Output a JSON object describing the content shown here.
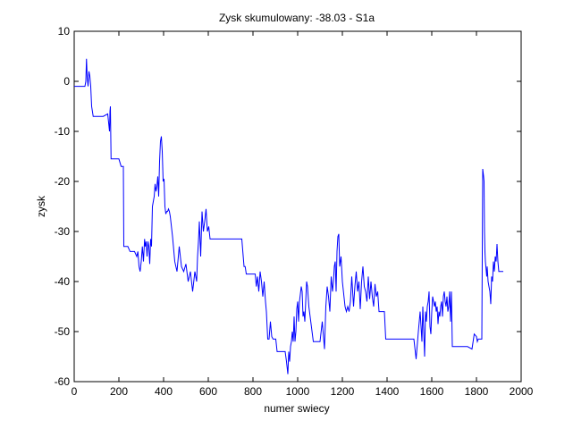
{
  "chart_data": {
    "type": "line",
    "title": "Zysk skumulowany: -38.03 - S1a",
    "xlabel": "numer swiecy",
    "ylabel": "zysk",
    "xlim": [
      0,
      2000
    ],
    "ylim": [
      -60,
      10
    ],
    "xticks": [
      0,
      200,
      400,
      600,
      800,
      1000,
      1200,
      1400,
      1600,
      1800,
      2000
    ],
    "yticks": [
      -60,
      -50,
      -40,
      -30,
      -20,
      -10,
      0,
      10
    ],
    "grid": false,
    "line_color": "#0000ff",
    "series": [
      {
        "x": [
          0,
          48,
          52,
          55,
          58,
          62,
          66,
          70,
          74,
          78,
          85,
          95,
          110,
          130,
          150,
          158,
          160,
          162,
          165,
          170,
          175,
          180,
          190,
          200,
          210,
          220,
          222,
          225,
          230,
          240,
          250,
          260,
          270,
          280,
          285,
          290,
          295,
          300,
          305,
          310,
          315,
          318,
          322,
          326,
          330,
          334,
          338,
          342,
          346,
          350,
          354,
          358,
          362,
          366,
          370,
          374,
          378,
          382,
          386,
          390,
          394,
          398,
          402,
          406,
          410,
          414,
          418,
          422,
          426,
          430,
          440,
          450,
          460,
          470,
          480,
          490,
          500,
          510,
          520,
          530,
          540,
          548,
          552,
          556,
          560,
          566,
          572,
          578,
          584,
          590,
          596,
          602,
          608,
          614,
          620,
          630,
          640,
          650,
          660,
          670,
          680,
          690,
          700,
          710,
          720,
          730,
          740,
          750,
          760,
          765,
          770,
          780,
          790,
          800,
          810,
          815,
          820,
          826,
          832,
          838,
          844,
          850,
          856,
          860,
          866,
          872,
          878,
          884,
          890,
          896,
          902,
          908,
          914,
          920,
          926,
          932,
          938,
          944,
          950,
          956,
          960,
          964,
          968,
          972,
          976,
          980,
          984,
          988,
          992,
          996,
          1000,
          1004,
          1008,
          1012,
          1016,
          1020,
          1024,
          1028,
          1032,
          1036,
          1040,
          1044,
          1050,
          1060,
          1070,
          1080,
          1090,
          1100,
          1110,
          1120,
          1126,
          1132,
          1138,
          1144,
          1150,
          1156,
          1160,
          1164,
          1168,
          1172,
          1176,
          1180,
          1184,
          1188,
          1194,
          1200,
          1206,
          1212,
          1218,
          1224,
          1230,
          1236,
          1242,
          1250,
          1256,
          1262,
          1268,
          1274,
          1280,
          1286,
          1292,
          1298,
          1304,
          1310,
          1316,
          1322,
          1328,
          1334,
          1340,
          1346,
          1352,
          1358,
          1364,
          1370,
          1376,
          1382,
          1388,
          1394,
          1400,
          1410,
          1420,
          1430,
          1440,
          1450,
          1460,
          1470,
          1480,
          1490,
          1500,
          1510,
          1520,
          1530,
          1540,
          1548,
          1552,
          1556,
          1560,
          1564,
          1568,
          1572,
          1576,
          1580,
          1584,
          1588,
          1592,
          1596,
          1600,
          1604,
          1608,
          1612,
          1616,
          1620,
          1624,
          1628,
          1632,
          1636,
          1640,
          1644,
          1648,
          1652,
          1656,
          1660,
          1664,
          1668,
          1672,
          1676,
          1680,
          1684,
          1688,
          1692,
          1696,
          1700,
          1704,
          1710,
          1720,
          1740,
          1760,
          1780,
          1790,
          1800,
          1804,
          1808,
          1812,
          1818,
          1824,
          1828,
          1832,
          1834,
          1836,
          1838,
          1840,
          1842,
          1844,
          1846,
          1848,
          1852,
          1856,
          1860,
          1864,
          1868,
          1872,
          1876,
          1880,
          1884,
          1888,
          1892,
          1896,
          1900,
          1910,
          1920
        ],
        "y": [
          -1,
          -1,
          0,
          4.5,
          1,
          -1,
          2,
          1,
          -1,
          -5,
          -7,
          -7,
          -7,
          -7,
          -6.5,
          -10,
          -6,
          -5,
          -15.5,
          -15.5,
          -15.5,
          -15.5,
          -15.5,
          -15.5,
          -17,
          -17,
          -33,
          -33,
          -33,
          -33,
          -34,
          -34,
          -34,
          -35,
          -34,
          -37,
          -38,
          -36,
          -33,
          -36,
          -31.5,
          -33,
          -32,
          -35,
          -32,
          -33,
          -36.5,
          -31.5,
          -33,
          -25,
          -24,
          -23,
          -20.5,
          -22,
          -21,
          -19,
          -23,
          -16,
          -12,
          -11,
          -14,
          -20,
          -19.5,
          -25,
          -26.5,
          -26,
          -26,
          -25.5,
          -26,
          -27,
          -31,
          -36,
          -38,
          -33,
          -37,
          -38,
          -36.5,
          -40,
          -38,
          -42,
          -38,
          -40,
          -35,
          -32,
          -28,
          -35,
          -26,
          -30,
          -28,
          -25.5,
          -30,
          -29,
          -31.5,
          -31.5,
          -31.5,
          -31.5,
          -31.5,
          -31.5,
          -31.5,
          -31.5,
          -31.5,
          -31.5,
          -31.5,
          -31.5,
          -31.5,
          -31.5,
          -31.5,
          -31.5,
          -37,
          -37,
          -38.5,
          -38.5,
          -38.5,
          -38.5,
          -38.5,
          -41,
          -39,
          -42,
          -38,
          -40,
          -43,
          -40,
          -44,
          -46,
          -51.5,
          -51.5,
          -48,
          -51,
          -51.5,
          -51.5,
          -51.5,
          -54,
          -54,
          -54,
          -54,
          -54,
          -54,
          -54,
          -56,
          -58.5,
          -54,
          -56,
          -53,
          -52,
          -50,
          -52,
          -47,
          -52,
          -50,
          -45.5,
          -44,
          -48,
          -44,
          -42.5,
          -41,
          -42,
          -47,
          -46,
          -48,
          -44,
          -40,
          -41,
          -45,
          -48.5,
          -52,
          -52,
          -52,
          -52,
          -48,
          -53.5,
          -45,
          -41,
          -43,
          -46,
          -39,
          -42,
          -40,
          -37,
          -36,
          -42,
          -34,
          -31,
          -30.5,
          -37,
          -35,
          -40,
          -42.5,
          -45,
          -46,
          -45,
          -46,
          -44,
          -39,
          -45,
          -41,
          -38,
          -42,
          -40,
          -45.5,
          -40,
          -37,
          -41,
          -42,
          -44,
          -39,
          -43.5,
          -40,
          -43,
          -45,
          -40.5,
          -43,
          -42,
          -46,
          -46,
          -46,
          -46,
          -46,
          -51.5,
          -51.5,
          -51.5,
          -51.5,
          -51.5,
          -51.5,
          -51.5,
          -51.5,
          -51.5,
          -51.5,
          -51.5,
          -51.5,
          -51.5,
          -51.5,
          -55.5,
          -50,
          -46,
          -49,
          -52,
          -45,
          -50,
          -55,
          -46,
          -48,
          -45,
          -44,
          -42,
          -49,
          -50.5,
          -46,
          -43,
          -44,
          -45,
          -44,
          -46,
          -45,
          -48.5,
          -46,
          -47,
          -45,
          -44,
          -47,
          -43,
          -42,
          -44,
          -45,
          -43,
          -46,
          -45,
          -42,
          -48,
          -42,
          -53,
          -53,
          -53,
          -53,
          -53,
          -53,
          -53,
          -53,
          -53.5,
          -50.5,
          -51,
          -52,
          -51.5,
          -51.5,
          -51.5,
          -51.5,
          -17.5,
          -19,
          -20,
          -30,
          -34,
          -36,
          -37,
          -38,
          -39,
          -37,
          -40,
          -41,
          -42,
          -44.5,
          -39,
          -40,
          -36,
          -38,
          -35,
          -36,
          -32.5,
          -36,
          -38,
          -38,
          -38
        ]
      }
    ]
  }
}
